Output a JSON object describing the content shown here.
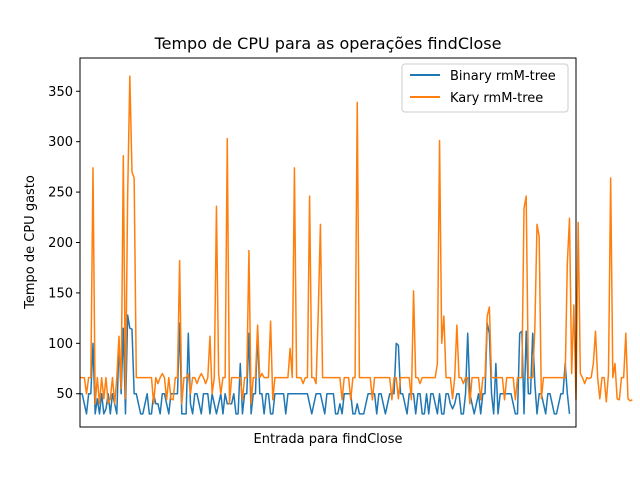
{
  "chart_data": {
    "type": "line",
    "title": "Tempo de CPU para as operações findClose",
    "xlabel": "Entrada para findClose",
    "ylabel": "Tempo de CPU gasto",
    "xlim": [
      0,
      229
    ],
    "ylim": [
      17,
      383
    ],
    "yticks": [
      50,
      100,
      150,
      200,
      250,
      300,
      350
    ],
    "x_tick_labels_visible": false,
    "grid": false,
    "legend_position": "top-right",
    "series": [
      {
        "name": "Binary rmM-tree",
        "color": "#1f77b4",
        "values": [
          50,
          50,
          40,
          30,
          50,
          50,
          100,
          30,
          45,
          30,
          50,
          30,
          35,
          50,
          30,
          50,
          40,
          30,
          100,
          50,
          115,
          30,
          128,
          115,
          114,
          50,
          50,
          40,
          30,
          30,
          40,
          50,
          30,
          30,
          50,
          40,
          40,
          30,
          50,
          50,
          40,
          30,
          50,
          50,
          50,
          50,
          120,
          30,
          30,
          30,
          110,
          40,
          30,
          50,
          50,
          40,
          30,
          50,
          50,
          50,
          30,
          50,
          40,
          30,
          40,
          50,
          30,
          50,
          40,
          40,
          40,
          50,
          30,
          30,
          80,
          30,
          50,
          50,
          110,
          30,
          50,
          50,
          110,
          50,
          50,
          30,
          50,
          50,
          30,
          30,
          50,
          50,
          50,
          50,
          50,
          30,
          50,
          50,
          50,
          50,
          50,
          50,
          50,
          50,
          50,
          50,
          40,
          30,
          40,
          50,
          50,
          50,
          40,
          30,
          50,
          50,
          50,
          50,
          30,
          30,
          40,
          30,
          50,
          50,
          50,
          50,
          30,
          30,
          40,
          30,
          30,
          30,
          40,
          50,
          50,
          50,
          50,
          30,
          50,
          50,
          40,
          30,
          40,
          50,
          50,
          50,
          100,
          98,
          50,
          50,
          40,
          30,
          50,
          50,
          50,
          30,
          50,
          50,
          30,
          30,
          50,
          30,
          50,
          50,
          40,
          30,
          50,
          30,
          30,
          50,
          50,
          40,
          35,
          40,
          50,
          50,
          30,
          30,
          50,
          110,
          50,
          40,
          30,
          40,
          50,
          30,
          50,
          50,
          120,
          110,
          50,
          30,
          80,
          30,
          50,
          50,
          50,
          50,
          50,
          50,
          40,
          30,
          30,
          110,
          112,
          30,
          112,
          50,
          50,
          110,
          60,
          30,
          50,
          50,
          40,
          30,
          50,
          50,
          40,
          30,
          30,
          40,
          50,
          50,
          80,
          50,
          30
        ]
      },
      {
        "name": "Kary rmM-tree",
        "color": "#ff7f0e",
        "values": [
          66,
          66,
          66,
          50,
          66,
          66,
          274,
          40,
          66,
          40,
          66,
          45,
          66,
          40,
          45,
          66,
          40,
          66,
          107,
          55,
          286,
          45,
          246,
          365,
          270,
          264,
          66,
          66,
          66,
          66,
          66,
          66,
          66,
          66,
          40,
          66,
          60,
          66,
          70,
          66,
          44,
          66,
          45,
          44,
          66,
          66,
          182,
          40,
          66,
          66,
          70,
          50,
          66,
          66,
          60,
          66,
          70,
          66,
          60,
          66,
          107,
          50,
          66,
          236,
          70,
          50,
          66,
          66,
          303,
          40,
          66,
          66,
          66,
          66,
          66,
          44,
          66,
          66,
          192,
          40,
          66,
          66,
          118,
          66,
          70,
          66,
          66,
          66,
          122,
          44,
          66,
          66,
          66,
          66,
          66,
          66,
          66,
          95,
          66,
          274,
          66,
          66,
          66,
          60,
          66,
          66,
          246,
          66,
          66,
          60,
          130,
          218,
          66,
          66,
          66,
          66,
          66,
          66,
          66,
          66,
          66,
          44,
          66,
          66,
          66,
          44,
          66,
          66,
          339,
          66,
          66,
          66,
          66,
          66,
          66,
          44,
          66,
          66,
          66,
          66,
          66,
          66,
          66,
          66,
          44,
          66,
          66,
          45,
          66,
          66,
          66,
          66,
          66,
          44,
          152,
          66,
          66,
          60,
          66,
          66,
          66,
          66,
          66,
          66,
          66,
          80,
          301,
          100,
          127,
          66,
          66,
          66,
          45,
          66,
          118,
          66,
          66,
          60,
          66,
          66,
          40,
          66,
          66,
          66,
          66,
          44,
          66,
          66,
          127,
          136,
          66,
          66,
          66,
          66,
          66,
          66,
          44,
          66,
          66,
          66,
          66,
          44,
          66,
          66,
          66,
          234,
          246,
          66,
          66,
          66,
          115,
          218,
          206,
          45,
          66,
          66,
          66,
          66,
          66,
          66,
          66,
          66,
          66,
          66,
          66,
          180,
          224,
          70,
          138,
          44,
          220,
          70,
          66,
          60,
          66,
          65,
          66,
          80,
          112,
          66,
          45,
          66,
          66,
          42,
          70,
          264,
          66,
          80,
          45,
          44,
          66,
          66,
          110,
          45,
          43,
          44
        ]
      }
    ]
  }
}
